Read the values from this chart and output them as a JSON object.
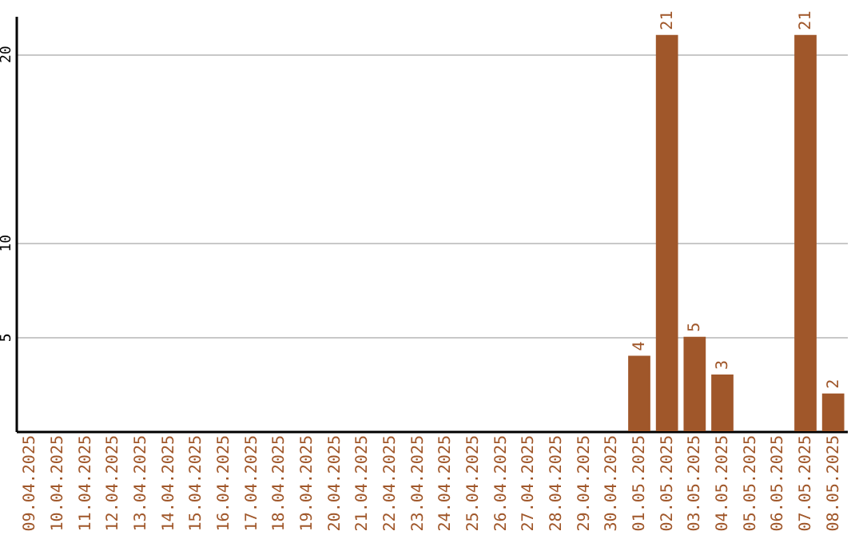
{
  "chart_data": {
    "type": "bar",
    "categories": [
      "09.04.2025",
      "10.04.2025",
      "11.04.2025",
      "12.04.2025",
      "13.04.2025",
      "14.04.2025",
      "15.04.2025",
      "16.04.2025",
      "17.04.2025",
      "18.04.2025",
      "19.04.2025",
      "20.04.2025",
      "21.04.2025",
      "22.04.2025",
      "23.04.2025",
      "24.04.2025",
      "25.04.2025",
      "26.04.2025",
      "27.04.2025",
      "28.04.2025",
      "29.04.2025",
      "30.04.2025",
      "01.05.2025",
      "02.05.2025",
      "03.05.2025",
      "04.05.2025",
      "05.05.2025",
      "06.05.2025",
      "07.05.2025",
      "08.05.2025"
    ],
    "values": [
      0,
      0,
      0,
      0,
      0,
      0,
      0,
      0,
      0,
      0,
      0,
      0,
      0,
      0,
      0,
      0,
      0,
      0,
      0,
      0,
      0,
      0,
      4,
      21,
      5,
      3,
      0,
      0,
      21,
      2
    ],
    "value_labels": [
      null,
      null,
      null,
      null,
      null,
      null,
      null,
      null,
      null,
      null,
      null,
      null,
      null,
      null,
      null,
      null,
      null,
      null,
      null,
      null,
      null,
      null,
      "4",
      "21",
      "5",
      "3",
      null,
      null,
      "21",
      "2"
    ],
    "color": "#a0572a",
    "ylim": [
      0,
      22
    ],
    "yticks": [
      5,
      10,
      20
    ],
    "grid": "y"
  }
}
